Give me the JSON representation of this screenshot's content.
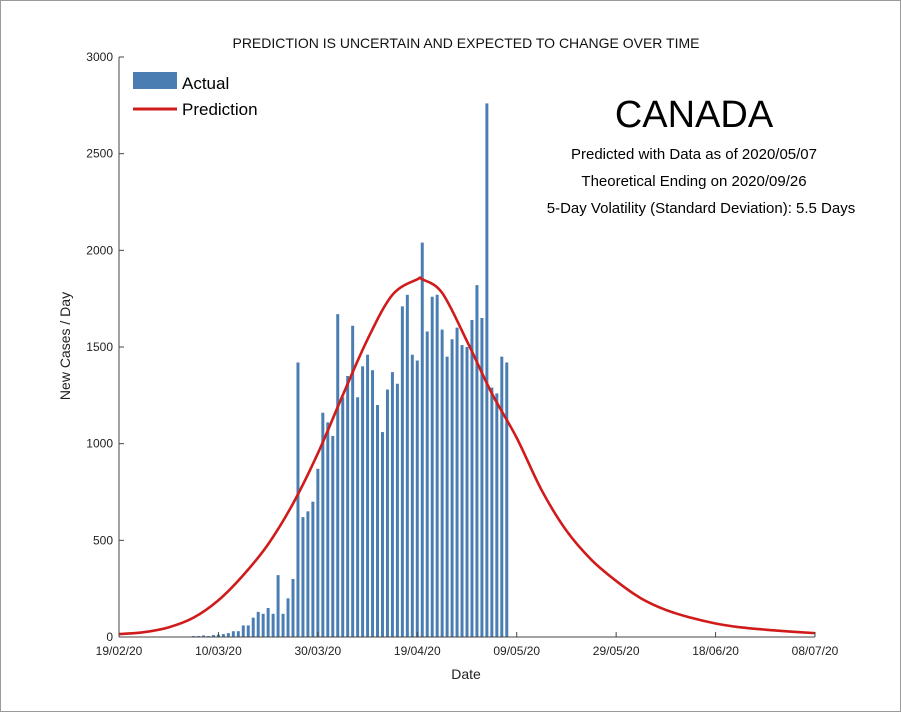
{
  "chart_data": {
    "type": "bar",
    "title": "PREDICTION IS UNCERTAIN AND EXPECTED TO CHANGE OVER TIME",
    "xlabel": "Date",
    "ylabel": "New Cases / Day",
    "ylim": [
      0,
      3000
    ],
    "yticks": [
      0,
      500,
      1000,
      1500,
      2000,
      2500,
      3000
    ],
    "x_start_date": "19/02/20",
    "x_end_days": 140,
    "xticks": [
      {
        "day": 0,
        "label": "19/02/20"
      },
      {
        "day": 20,
        "label": "10/03/20"
      },
      {
        "day": 40,
        "label": "30/03/20"
      },
      {
        "day": 60,
        "label": "19/04/20"
      },
      {
        "day": 80,
        "label": "09/05/20"
      },
      {
        "day": 100,
        "label": "29/05/20"
      },
      {
        "day": 120,
        "label": "18/06/20"
      },
      {
        "day": 140,
        "label": "08/07/20"
      }
    ],
    "legend": {
      "position": "top-left",
      "entries": [
        {
          "label": "Actual",
          "color": "#4a7eb3"
        },
        {
          "label": "Prediction",
          "color": "#d01b1b"
        }
      ]
    },
    "annotations": {
      "country": "CANADA",
      "lines": [
        "Predicted with Data as of 2020/05/07",
        "Theoretical Ending on 2020/09/26",
        "5-Day Volatility (Standard Deviation): 5.5 Days"
      ]
    },
    "series": [
      {
        "name": "Actual",
        "kind": "bar",
        "color": "#4a7eb3",
        "start_day": 15,
        "values": [
          5,
          5,
          8,
          5,
          10,
          12,
          15,
          20,
          30,
          30,
          60,
          60,
          100,
          130,
          120,
          150,
          120,
          320,
          120,
          200,
          300,
          1420,
          620,
          650,
          700,
          870,
          1160,
          1110,
          1040,
          1670,
          1240,
          1350,
          1610,
          1240,
          1400,
          1460,
          1380,
          1200,
          1060,
          1280,
          1370,
          1310,
          1710,
          1770,
          1460,
          1430,
          2040,
          1580,
          1760,
          1770,
          1590,
          1450,
          1540,
          1600,
          1510,
          1500,
          1640,
          1820,
          1650,
          2760,
          1290,
          1260,
          1450,
          1420
        ]
      },
      {
        "name": "Prediction",
        "kind": "line",
        "color": "#d01b1b",
        "peak_value": 1850,
        "peak_day": 61,
        "x": [
          0,
          5,
          10,
          15,
          20,
          25,
          30,
          35,
          40,
          45,
          50,
          55,
          60,
          61,
          65,
          70,
          75,
          80,
          85,
          90,
          95,
          100,
          105,
          110,
          115,
          120,
          125,
          130,
          135,
          140
        ],
        "y": [
          15,
          25,
          50,
          100,
          190,
          320,
          480,
          690,
          950,
          1250,
          1540,
          1770,
          1850,
          1850,
          1780,
          1530,
          1260,
          1030,
          760,
          550,
          400,
          290,
          200,
          140,
          100,
          70,
          50,
          38,
          28,
          20
        ]
      }
    ]
  }
}
